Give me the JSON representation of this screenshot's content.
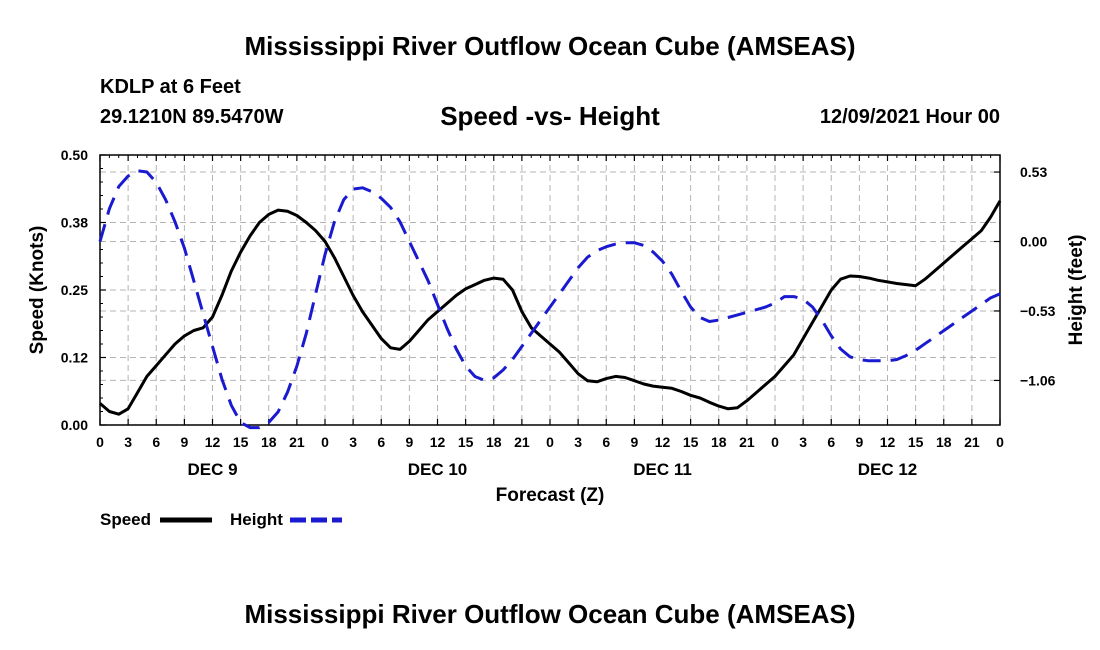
{
  "header": {
    "title": "Mississippi River Outflow Ocean Cube (AMSEAS)",
    "station": "KDLP at 6 Feet",
    "coordinates": "29.1210N  89.5470W",
    "subtitle": "Speed -vs- Height",
    "datetime": "12/09/2021 Hour 00"
  },
  "footer": {
    "title": "Mississippi River Outflow Ocean Cube (AMSEAS)"
  },
  "colors": {
    "speed": "#000000",
    "height": "#1a1ad0",
    "grid": "#b4b4b4"
  },
  "chart_data": {
    "type": "line",
    "title": "Speed -vs- Height",
    "xlabel": "Forecast (Z)",
    "ylabel": "Speed (Knots)",
    "ylabel_right": "Height (feet)",
    "x_range": [
      0,
      96
    ],
    "ylim": [
      0,
      0.5
    ],
    "ylim_right": [
      -1.4,
      0.66
    ],
    "x_ticks": [
      0,
      3,
      6,
      9,
      12,
      15,
      18,
      21,
      24,
      27,
      30,
      33,
      36,
      39,
      42,
      45,
      48,
      51,
      54,
      57,
      60,
      63,
      66,
      69,
      72,
      75,
      78,
      81,
      84,
      87,
      90,
      93,
      96
    ],
    "x_tick_labels": [
      "0",
      "3",
      "6",
      "9",
      "12",
      "15",
      "18",
      "21",
      "0",
      "3",
      "6",
      "9",
      "12",
      "15",
      "18",
      "21",
      "0",
      "3",
      "6",
      "9",
      "12",
      "15",
      "18",
      "21",
      "0",
      "3",
      "6",
      "9",
      "12",
      "15",
      "18",
      "21",
      "0"
    ],
    "day_labels": [
      {
        "hour": 12,
        "label": "DEC 9"
      },
      {
        "hour": 36,
        "label": "DEC 10"
      },
      {
        "hour": 60,
        "label": "DEC 11"
      },
      {
        "hour": 84,
        "label": "DEC 12"
      }
    ],
    "y_ticks": [
      0.0,
      0.125,
      0.25,
      0.375,
      0.5
    ],
    "y_tick_labels": [
      "0.00",
      "0.12",
      "0.25",
      "0.38",
      "0.50"
    ],
    "y_ticks_right": [
      0.53,
      0.0,
      -0.53,
      -1.06
    ],
    "y_tick_labels_right": [
      "0.53",
      "0.00",
      "−0.53",
      "−1.06"
    ],
    "series": [
      {
        "name": "Speed",
        "axis": "left",
        "style": "solid",
        "x": [
          0,
          1,
          2,
          3,
          4,
          5,
          6,
          7,
          8,
          9,
          10,
          11,
          12,
          13,
          14,
          15,
          16,
          17,
          18,
          19,
          20,
          21,
          22,
          23,
          24,
          25,
          26,
          27,
          28,
          29,
          30,
          31,
          32,
          33,
          34,
          35,
          36,
          37,
          38,
          39,
          40,
          41,
          42,
          43,
          44,
          45,
          46,
          47,
          48,
          49,
          50,
          51,
          52,
          53,
          54,
          55,
          56,
          57,
          58,
          59,
          60,
          61,
          62,
          63,
          64,
          65,
          66,
          67,
          68,
          69,
          70,
          71,
          72,
          73,
          74,
          75,
          76,
          77,
          78,
          79,
          80,
          81,
          82,
          83,
          84,
          85,
          86,
          87,
          88,
          89,
          90,
          91,
          92,
          93,
          94,
          95,
          96
        ],
        "values": [
          0.04,
          0.025,
          0.02,
          0.03,
          0.06,
          0.09,
          0.11,
          0.13,
          0.15,
          0.165,
          0.175,
          0.18,
          0.2,
          0.24,
          0.285,
          0.32,
          0.35,
          0.375,
          0.39,
          0.398,
          0.396,
          0.388,
          0.375,
          0.36,
          0.34,
          0.31,
          0.275,
          0.24,
          0.21,
          0.185,
          0.16,
          0.143,
          0.14,
          0.155,
          0.175,
          0.195,
          0.21,
          0.225,
          0.24,
          0.252,
          0.26,
          0.268,
          0.272,
          0.27,
          0.25,
          0.21,
          0.18,
          0.165,
          0.15,
          0.135,
          0.115,
          0.095,
          0.082,
          0.08,
          0.086,
          0.09,
          0.088,
          0.082,
          0.076,
          0.072,
          0.07,
          0.068,
          0.062,
          0.055,
          0.05,
          0.042,
          0.035,
          0.03,
          0.032,
          0.045,
          0.06,
          0.075,
          0.09,
          0.11,
          0.13,
          0.16,
          0.19,
          0.22,
          0.25,
          0.27,
          0.276,
          0.275,
          0.272,
          0.268,
          0.265,
          0.262,
          0.26,
          0.258,
          0.27,
          0.285,
          0.3,
          0.315,
          0.33,
          0.345,
          0.36,
          0.385,
          0.415
        ]
      },
      {
        "name": "Height",
        "axis": "right",
        "style": "dashed",
        "x": [
          0,
          1,
          2,
          3,
          4,
          5,
          6,
          7,
          8,
          9,
          10,
          11,
          12,
          13,
          14,
          15,
          16,
          17,
          18,
          19,
          20,
          21,
          22,
          23,
          24,
          25,
          26,
          27,
          28,
          29,
          30,
          31,
          32,
          33,
          34,
          35,
          36,
          37,
          38,
          39,
          40,
          41,
          42,
          43,
          44,
          45,
          46,
          47,
          48,
          49,
          50,
          51,
          52,
          53,
          54,
          55,
          56,
          57,
          58,
          59,
          60,
          61,
          62,
          63,
          64,
          65,
          66,
          67,
          68,
          69,
          70,
          71,
          72,
          73,
          74,
          75,
          76,
          77,
          78,
          79,
          80,
          81,
          82,
          83,
          84,
          85,
          86,
          87,
          88,
          89,
          90,
          91,
          92,
          93,
          94,
          95,
          96
        ],
        "values": [
          0.0,
          0.25,
          0.42,
          0.5,
          0.54,
          0.53,
          0.45,
          0.32,
          0.15,
          -0.05,
          -0.3,
          -0.55,
          -0.8,
          -1.05,
          -1.25,
          -1.38,
          -1.42,
          -1.42,
          -1.38,
          -1.3,
          -1.15,
          -0.95,
          -0.7,
          -0.4,
          -0.1,
          0.15,
          0.32,
          0.4,
          0.41,
          0.38,
          0.33,
          0.26,
          0.15,
          0.0,
          -0.15,
          -0.3,
          -0.48,
          -0.66,
          -0.82,
          -0.95,
          -1.03,
          -1.06,
          -1.04,
          -0.98,
          -0.9,
          -0.8,
          -0.7,
          -0.6,
          -0.5,
          -0.4,
          -0.3,
          -0.2,
          -0.12,
          -0.07,
          -0.04,
          -0.02,
          -0.01,
          -0.01,
          -0.03,
          -0.08,
          -0.15,
          -0.25,
          -0.38,
          -0.5,
          -0.58,
          -0.61,
          -0.6,
          -0.58,
          -0.56,
          -0.54,
          -0.52,
          -0.5,
          -0.47,
          -0.42,
          -0.42,
          -0.44,
          -0.5,
          -0.6,
          -0.72,
          -0.82,
          -0.88,
          -0.9,
          -0.91,
          -0.91,
          -0.91,
          -0.9,
          -0.87,
          -0.83,
          -0.78,
          -0.73,
          -0.68,
          -0.63,
          -0.58,
          -0.53,
          -0.48,
          -0.43,
          -0.4
        ]
      }
    ],
    "legend": [
      {
        "label": "Speed",
        "series": "Speed"
      },
      {
        "label": "Height",
        "series": "Height"
      }
    ],
    "grid": true,
    "legend_position": "bottom-left"
  }
}
